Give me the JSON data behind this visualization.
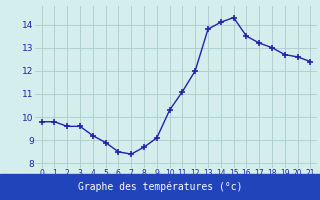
{
  "x": [
    0,
    1,
    2,
    3,
    4,
    5,
    6,
    7,
    8,
    9,
    10,
    11,
    12,
    13,
    14,
    15,
    16,
    17,
    18,
    19,
    20,
    21
  ],
  "y": [
    9.8,
    9.8,
    9.6,
    9.6,
    9.2,
    8.9,
    8.5,
    8.4,
    8.7,
    9.1,
    10.3,
    11.1,
    12.0,
    13.8,
    14.1,
    14.3,
    13.5,
    13.2,
    13.0,
    12.7,
    12.6,
    12.4
  ],
  "line_color": "#2222aa",
  "marker": "+",
  "marker_color": "#2222aa",
  "bg_color": "#d4eeee",
  "grid_color": "#aacccc",
  "xlabel": "Graphe des températures (°c)",
  "xlabel_color": "#ffffff",
  "xlabel_bg": "#2244bb",
  "ylabel_ticks": [
    8,
    9,
    10,
    11,
    12,
    13,
    14
  ],
  "xticks": [
    0,
    1,
    2,
    3,
    4,
    5,
    6,
    7,
    8,
    9,
    10,
    11,
    12,
    13,
    14,
    15,
    16,
    17,
    18,
    19,
    20,
    21
  ],
  "ylim": [
    7.8,
    14.8
  ],
  "xlim": [
    -0.5,
    21.5
  ]
}
